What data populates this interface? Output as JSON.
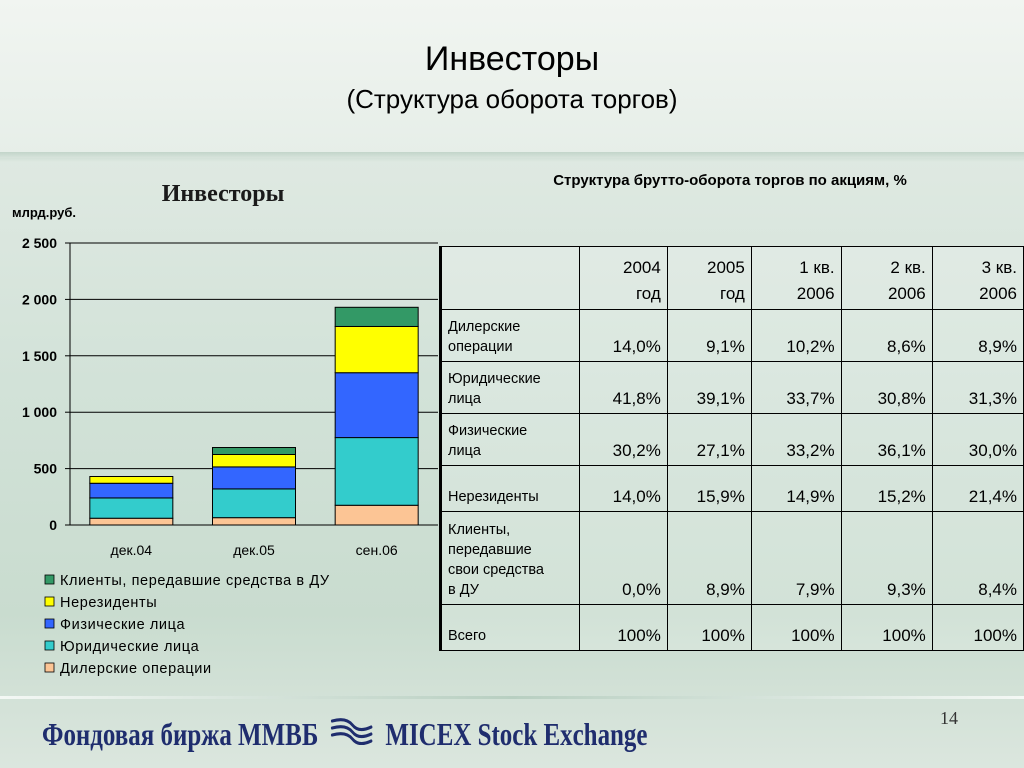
{
  "slide": {
    "title": "Инвесторы",
    "subtitle": "(Структура оборота торгов)",
    "page_number": "14",
    "footer": {
      "left": "Фондовая биржа ММВБ",
      "right": "MICEX Stock Exchange"
    }
  },
  "chart_data": [
    {
      "type": "bar",
      "stacked": true,
      "title": "Инвесторы",
      "ylabel": "млрд.руб.",
      "categories": [
        "дек.04",
        "дек.05",
        "сен.06"
      ],
      "ylim": [
        0,
        2500
      ],
      "yticks": [
        0,
        500,
        1000,
        1500,
        2000,
        2500
      ],
      "ytick_labels": [
        "0",
        "500",
        "1 000",
        "1 500",
        "2 000",
        "2 500"
      ],
      "grid": true,
      "legend_position": "bottom",
      "series": [
        {
          "name": "Дилерские операции",
          "color": "#fcc595",
          "values": [
            60,
            65,
            175
          ]
        },
        {
          "name": "Юридические лица",
          "color": "#33cccc",
          "values": [
            180,
            255,
            600
          ]
        },
        {
          "name": "Физические лица",
          "color": "#3366ff",
          "values": [
            130,
            195,
            575
          ]
        },
        {
          "name": "Нерезиденты",
          "color": "#ffff00",
          "values": [
            60,
            110,
            410
          ]
        },
        {
          "name": "Клиенты, передавшие средства в ДУ",
          "color": "#339966",
          "values": [
            0,
            62,
            170
          ]
        }
      ],
      "legend_order": [
        "Клиенты, передавшие средства в ДУ",
        "Нерезиденты",
        "Физические лица",
        "Юридические лица",
        "Дилерские операции"
      ]
    },
    {
      "type": "table",
      "title": "Структура брутто-оборота торгов по акциям, %",
      "columns": [
        {
          "line1": "2004",
          "line2": "год"
        },
        {
          "line1": "2005",
          "line2": "год"
        },
        {
          "line1": "1 кв.",
          "line2": "2006"
        },
        {
          "line1": "2 кв.",
          "line2": "2006"
        },
        {
          "line1": "3 кв.",
          "line2": "2006"
        }
      ],
      "rows": [
        {
          "label": [
            "Дилерские",
            "операции"
          ],
          "values": [
            "14,0%",
            "9,1%",
            "10,2%",
            "8,6%",
            "8,9%"
          ]
        },
        {
          "label": [
            "Юридические",
            "лица"
          ],
          "values": [
            "41,8%",
            "39,1%",
            "33,7%",
            "30,8%",
            "31,3%"
          ]
        },
        {
          "label": [
            "Физические",
            "лица"
          ],
          "values": [
            "30,2%",
            "27,1%",
            "33,2%",
            "36,1%",
            "30,0%"
          ]
        },
        {
          "label": [
            "Нерезиденты"
          ],
          "values": [
            "14,0%",
            "15,9%",
            "14,9%",
            "15,2%",
            "21,4%"
          ]
        },
        {
          "label": [
            "Клиенты,",
            "передавшие",
            "свои средства",
            "в ДУ"
          ],
          "values": [
            "0,0%",
            "8,9%",
            "7,9%",
            "9,3%",
            "8,4%"
          ]
        },
        {
          "label": [
            "Всего"
          ],
          "values": [
            "100%",
            "100%",
            "100%",
            "100%",
            "100%"
          ]
        }
      ]
    }
  ]
}
